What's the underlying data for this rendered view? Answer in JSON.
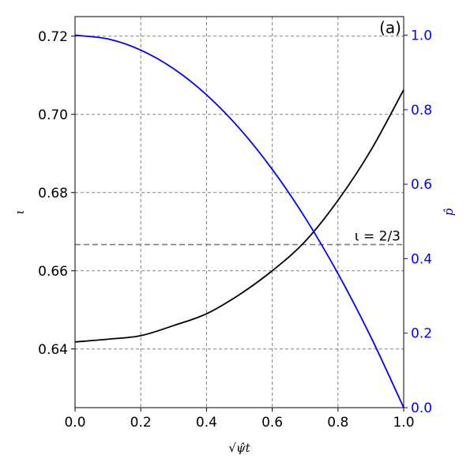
{
  "chart_data": {
    "type": "line",
    "panel_label": "(a)",
    "xlabel": "√ψ̂t",
    "ylabel_left": "ι",
    "ylabel_right": "p̂",
    "xlim": [
      0.0,
      1.0
    ],
    "ylim_left": [
      0.625,
      0.725
    ],
    "ylim_right": [
      0.0,
      1.05
    ],
    "x_ticks": [
      "0.0",
      "0.2",
      "0.4",
      "0.6",
      "0.8",
      "1.0"
    ],
    "y_left_ticks": [
      "0.64",
      "0.66",
      "0.68",
      "0.70",
      "0.72"
    ],
    "y_right_ticks": [
      "0.0",
      "0.2",
      "0.4",
      "0.6",
      "0.8",
      "1.0"
    ],
    "grid": true,
    "reference_line": {
      "y": 0.6667,
      "label": "ι = 2/3",
      "color": "#808080"
    },
    "series": [
      {
        "axis": "left",
        "color": "#000000",
        "x": [
          0.0,
          0.1,
          0.2,
          0.3,
          0.4,
          0.5,
          0.6,
          0.7,
          0.8,
          0.9,
          1.0
        ],
        "y": [
          0.6418,
          0.6425,
          0.6434,
          0.646,
          0.649,
          0.6539,
          0.66,
          0.6675,
          0.678,
          0.6908,
          0.7063
        ]
      },
      {
        "axis": "right",
        "color": "#0000ff",
        "x": [
          0.0,
          0.1,
          0.2,
          0.3,
          0.4,
          0.5,
          0.6,
          0.7,
          0.8,
          0.9,
          1.0
        ],
        "y": [
          1.0,
          0.99,
          0.96,
          0.91,
          0.84,
          0.75,
          0.64,
          0.51,
          0.36,
          0.19,
          0.0
        ]
      }
    ]
  },
  "colors": {
    "left_axis": "#000000",
    "right_axis": "#0000ff",
    "grid": "#808080"
  }
}
